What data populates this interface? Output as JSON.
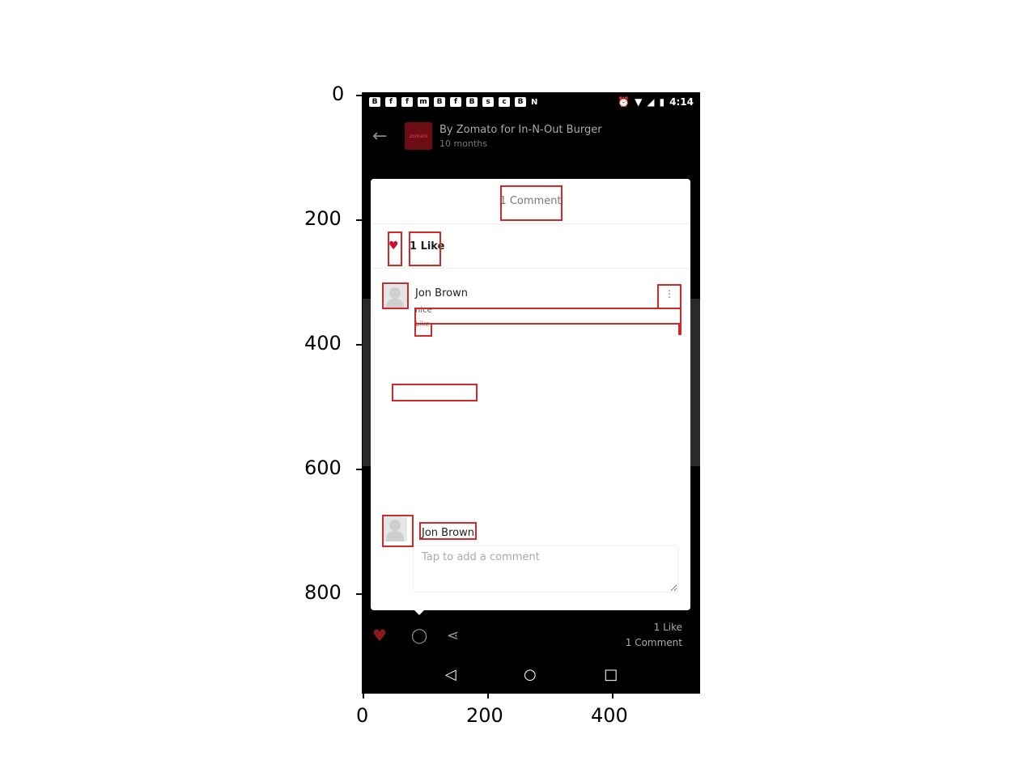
{
  "axes": {
    "y_ticks": [
      "0",
      "200",
      "400",
      "600",
      "800"
    ],
    "x_ticks": [
      "0",
      "200",
      "400"
    ]
  },
  "statusbar": {
    "left_icons": [
      "B",
      "f",
      "f",
      "m",
      "B",
      "f",
      "B",
      "s",
      "c",
      "B",
      "N"
    ],
    "time": "4:14"
  },
  "header": {
    "brand_logo_text": "zomato",
    "title": "By Zomato for In-N-Out Burger",
    "subtitle": "10 months"
  },
  "card": {
    "comments_title": "1 Comment",
    "likes_label": "1 Like",
    "comment": {
      "author": "Jon Brown",
      "text": "nice",
      "like_action": "Like",
      "more_icon": "⋮"
    },
    "reply": {
      "author": "Jon Brown",
      "placeholder": "Tap to add a comment"
    }
  },
  "actionbar": {
    "likes_count": "1 Like",
    "comments_count": "1 Comment"
  },
  "navbar": {
    "back": "◁",
    "home": "○",
    "recents": "□"
  },
  "colors": {
    "annotation_red": "#d62728",
    "heart_red": "#c8102e",
    "brand_maroon": "#6b0d12"
  }
}
